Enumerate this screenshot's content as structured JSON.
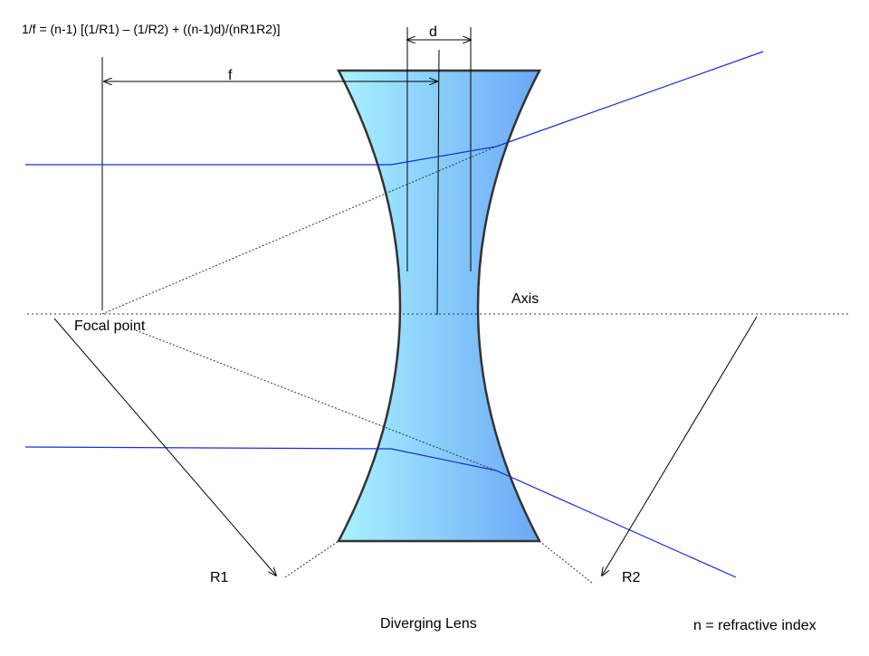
{
  "formula": "1/f = (n-1) [(1/R1) – (1/R2) + ((n-1)d)/(nR1R2)]",
  "labels": {
    "d": "d",
    "f": "f",
    "axis": "Axis",
    "focal_point": "Focal point",
    "r1": "R1",
    "r2": "R2",
    "title": "Diverging Lens",
    "note": "n = refractive index"
  }
}
